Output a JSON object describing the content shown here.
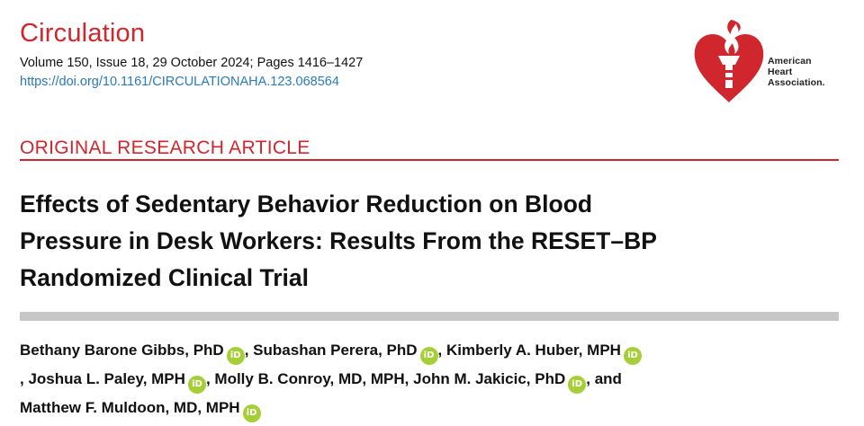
{
  "header": {
    "journal": "Circulation",
    "volume_line": "Volume 150, Issue 18, 29 October 2024; Pages 1416–1427",
    "doi": "https://doi.org/10.1161/CIRCULATIONAHA.123.068564"
  },
  "logo": {
    "line1": "American",
    "line2": "Heart",
    "line3": "Association."
  },
  "article": {
    "type": "ORIGINAL RESEARCH ARTICLE",
    "title_line1": "Effects of Sedentary Behavior Reduction on Blood",
    "title_line2": "Pressure in Desk Workers: Results From the RESET–BP",
    "title_line3": "Randomized Clinical Trial"
  },
  "authors": {
    "a1": "Bethany Barone Gibbs, PhD",
    "a2": "Subashan Perera, PhD",
    "a3": "Kimberly A. Huber, MPH",
    "a4": "Joshua L. Paley, MPH",
    "a5": "Molly B. Conroy, MD, MPH",
    "a6": "John M. Jakicic, PhD",
    "a7": "Matthew F. Muldoon, MD, MPH",
    "sep": ",",
    "and": "and",
    "orcid_label": "iD"
  },
  "colors": {
    "brand_red": "#d0262d",
    "doi_blue": "#2a7ab8",
    "orcid_green": "#a6ce39",
    "bar_gray": "#c6c6c6"
  }
}
